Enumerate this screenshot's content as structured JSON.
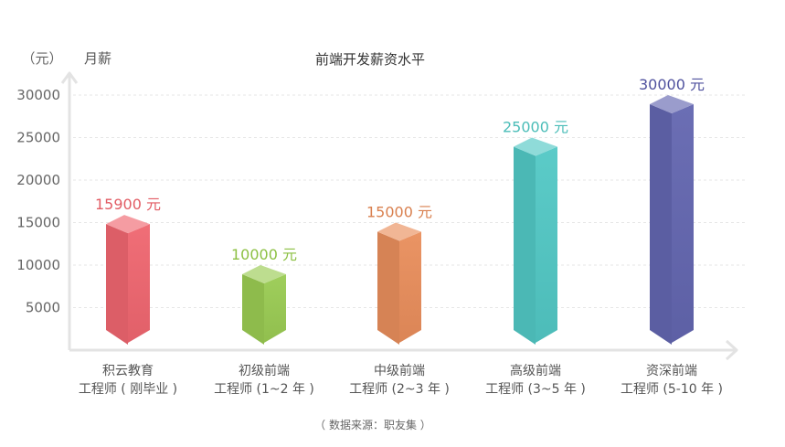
{
  "chart_data": {
    "type": "bar",
    "title": "前端开发薪资水平",
    "ylabel": "月薪",
    "yunit": "（元）",
    "ylim": [
      0,
      30000
    ],
    "yticks": [
      5000,
      10000,
      15000,
      20000,
      25000,
      30000
    ],
    "grid": true,
    "categories": [
      [
        "积云教育",
        "工程师 ( 刚毕业 )"
      ],
      [
        "初级前端",
        "工程师 (1~2 年 )"
      ],
      [
        "中级前端",
        "工程师 (2~3 年 )"
      ],
      [
        "高级前端",
        "工程师 (3~5 年 )"
      ],
      [
        "资深前端",
        "工程师 (5-10 年 )"
      ]
    ],
    "values": [
      15900,
      10000,
      15000,
      25000,
      30000
    ],
    "value_labels": [
      "15900 元",
      "10000 元",
      "15000 元",
      "25000 元",
      "30000 元"
    ],
    "colors": [
      "#ef6670",
      "#9acb53",
      "#e98e5c",
      "#52c8c5",
      "#6366b0"
    ],
    "label_colors": [
      "#e25c64",
      "#8cc043",
      "#d9804f",
      "#4bbdb8",
      "#4f519e"
    ],
    "source": "（ 数据来源：职友集 ）"
  }
}
